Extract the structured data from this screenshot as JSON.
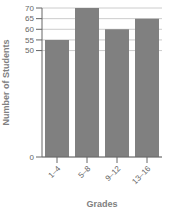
{
  "chart_data": {
    "type": "bar",
    "categories": [
      "1–4",
      "5–8",
      "9–12",
      "13–16"
    ],
    "values": [
      55,
      70,
      60,
      65
    ],
    "color": "#808080",
    "xlabel": "Grades",
    "ylabel": "Number of Students",
    "ylim": [
      0,
      70
    ],
    "yticks": [
      0,
      50,
      55,
      60,
      65,
      70
    ],
    "grid": true
  }
}
